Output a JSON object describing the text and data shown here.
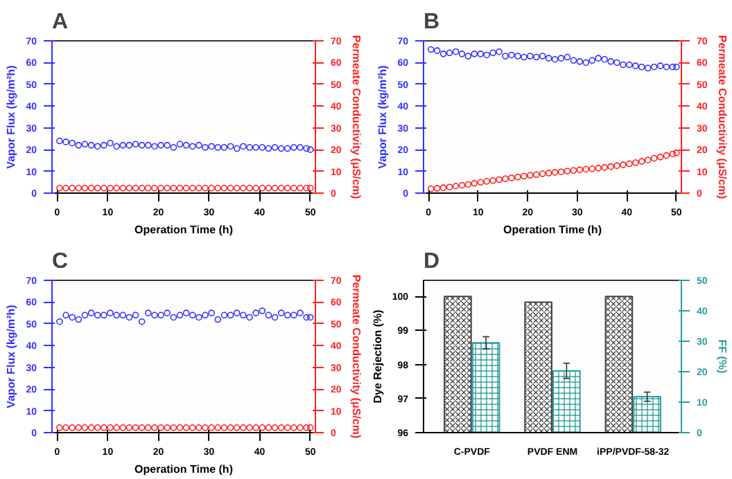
{
  "chart_data": [
    {
      "type": "scatter",
      "title": "A",
      "xlabel": "Operation Time (h)",
      "ylabel": "Vapor Flux (kg/m²h)",
      "y2label": "Permeate Conductivity (μS/cm)",
      "marker": "circle",
      "grid": false,
      "xlim": [
        -1,
        51
      ],
      "xticks": [
        0,
        10,
        20,
        30,
        40,
        50
      ],
      "ylim": [
        0,
        70
      ],
      "yticks": [
        0,
        10,
        20,
        30,
        40,
        50,
        60,
        70
      ],
      "y2lim": [
        0,
        70
      ],
      "y2ticks": [
        0,
        10,
        20,
        30,
        40,
        50,
        60,
        70
      ],
      "x": [
        0.5,
        1.75,
        3,
        4.25,
        5.5,
        6.75,
        8,
        9.25,
        10.5,
        11.75,
        13,
        14.25,
        15.5,
        16.75,
        18,
        19.25,
        20.5,
        21.75,
        23,
        24.25,
        25.5,
        26.75,
        28,
        29.25,
        30.5,
        31.75,
        33,
        34.25,
        35.5,
        36.75,
        38,
        39.25,
        40.5,
        41.75,
        43,
        44.25,
        45.5,
        46.75,
        48,
        49.25,
        50
      ],
      "series": [
        {
          "color": "#3030ff",
          "values": [
            24,
            23.5,
            23,
            22,
            22.5,
            22,
            21.5,
            22,
            23,
            21.5,
            22,
            22,
            22.5,
            22,
            22,
            21.5,
            22,
            22,
            21,
            22.5,
            22,
            21.5,
            22,
            21,
            21.5,
            21,
            21,
            21.5,
            20.5,
            21.5,
            21,
            21,
            21,
            20.5,
            21,
            20.5,
            20.5,
            21,
            21,
            20.5,
            20
          ]
        },
        {
          "color": "#ff2020",
          "axis": "y2",
          "values": [
            2.3,
            2.3,
            2.3,
            2.3,
            2.3,
            2.3,
            2.3,
            2.3,
            2.3,
            2.3,
            2.3,
            2.3,
            2.3,
            2.3,
            2.3,
            2.3,
            2.3,
            2.3,
            2.3,
            2.3,
            2.3,
            2.3,
            2.3,
            2.3,
            2.3,
            2.3,
            2.3,
            2.3,
            2.3,
            2.3,
            2.3,
            2.3,
            2.3,
            2.3,
            2.3,
            2.3,
            2.3,
            2.3,
            2.3,
            2.3,
            2.3
          ]
        }
      ]
    },
    {
      "type": "scatter",
      "title": "B",
      "xlabel": "Operation Time (h)",
      "ylabel": "Vapor Flux (kg/m²h)",
      "y2label": "Permeate Conductivity (μS/cm)",
      "marker": "circle",
      "grid": false,
      "xlim": [
        -1,
        51
      ],
      "xticks": [
        0,
        10,
        20,
        30,
        40,
        50
      ],
      "ylim": [
        0,
        70
      ],
      "yticks": [
        0,
        10,
        20,
        30,
        40,
        50,
        60,
        70
      ],
      "y2lim": [
        0,
        70
      ],
      "y2ticks": [
        0,
        10,
        20,
        30,
        40,
        50,
        60,
        70
      ],
      "x": [
        0.5,
        1.75,
        3,
        4.25,
        5.5,
        6.75,
        8,
        9.25,
        10.5,
        11.75,
        13,
        14.25,
        15.5,
        16.75,
        18,
        19.25,
        20.5,
        21.75,
        23,
        24.25,
        25.5,
        26.75,
        28,
        29.25,
        30.5,
        31.75,
        33,
        34.25,
        35.5,
        36.75,
        38,
        39.25,
        40.5,
        41.75,
        43,
        44.25,
        45.5,
        46.75,
        48,
        49.25,
        50
      ],
      "series": [
        {
          "color": "#3030ff",
          "values": [
            66,
            65.5,
            64,
            64.5,
            65,
            64,
            63,
            64,
            64,
            63.5,
            64.5,
            65,
            63,
            63.5,
            63,
            62.5,
            63,
            62.5,
            63,
            62,
            61.5,
            62,
            62.5,
            61,
            60.5,
            60,
            61,
            62,
            61.5,
            60.5,
            60,
            59,
            59,
            58.5,
            58,
            57.5,
            58,
            58.5,
            58,
            58,
            58
          ]
        },
        {
          "color": "#ff2020",
          "axis": "y2",
          "values": [
            2,
            2.2,
            2.5,
            2.8,
            3.2,
            3.6,
            4,
            4.5,
            5,
            5.4,
            5.8,
            6.2,
            6.6,
            7,
            7.4,
            7.8,
            8.2,
            8.5,
            8.9,
            9.2,
            9.5,
            9.8,
            10.1,
            10.4,
            10.7,
            11,
            11.2,
            11.5,
            11.8,
            12.2,
            12.6,
            13,
            13.5,
            14,
            14.6,
            15.2,
            16,
            16.6,
            17.3,
            18,
            18.5
          ]
        }
      ]
    },
    {
      "type": "scatter",
      "title": "C",
      "xlabel": "Operation Time (h)",
      "ylabel": "Vapor Flux (kg/m²h)",
      "y2label": "Permeate Conductivity (μS/cm)",
      "marker": "circle",
      "grid": false,
      "xlim": [
        -1,
        51
      ],
      "xticks": [
        0,
        10,
        20,
        30,
        40,
        50
      ],
      "ylim": [
        0,
        70
      ],
      "yticks": [
        0,
        10,
        20,
        30,
        40,
        50,
        60,
        70
      ],
      "y2lim": [
        0,
        70
      ],
      "y2ticks": [
        0,
        10,
        20,
        30,
        40,
        50,
        60,
        70
      ],
      "x": [
        0.5,
        1.75,
        3,
        4.25,
        5.5,
        6.75,
        8,
        9.25,
        10.5,
        11.75,
        13,
        14.25,
        15.5,
        16.75,
        18,
        19.25,
        20.5,
        21.75,
        23,
        24.25,
        25.5,
        26.75,
        28,
        29.25,
        30.5,
        31.75,
        33,
        34.25,
        35.5,
        36.75,
        38,
        39.25,
        40.5,
        41.75,
        43,
        44.25,
        45.5,
        46.75,
        48,
        49.25,
        50
      ],
      "series": [
        {
          "color": "#3030ff",
          "values": [
            51,
            54,
            53,
            52,
            54,
            55,
            54,
            54,
            55,
            54,
            54,
            53,
            54,
            51,
            55,
            54,
            54,
            55,
            53,
            54,
            55,
            54,
            53,
            54,
            55,
            52,
            54,
            54,
            55,
            54,
            53,
            55,
            56,
            54,
            53,
            55,
            54,
            54,
            55,
            53,
            53
          ]
        },
        {
          "color": "#ff2020",
          "axis": "y2",
          "values": [
            2.3,
            2.3,
            2.3,
            2.3,
            2.3,
            2.3,
            2.3,
            2.3,
            2.3,
            2.3,
            2.3,
            2.3,
            2.3,
            2.3,
            2.3,
            2.3,
            2.3,
            2.3,
            2.3,
            2.3,
            2.3,
            2.3,
            2.3,
            2.3,
            2.3,
            2.3,
            2.3,
            2.3,
            2.3,
            2.3,
            2.3,
            2.3,
            2.3,
            2.3,
            2.3,
            2.3,
            2.3,
            2.3,
            2.3,
            2.3,
            2.3
          ]
        }
      ]
    },
    {
      "type": "bar",
      "title": "D",
      "ylabel": "Dye Rejection (%)",
      "y2label": "FF (%)",
      "grid": false,
      "categories": [
        "C-PVDF",
        "PVDF ENM",
        "iPP/PVDF-58-32"
      ],
      "ylim": [
        96,
        100.47
      ],
      "yticks": [
        96,
        97,
        98,
        99,
        100
      ],
      "y2lim": [
        0,
        50
      ],
      "y2ticks": [
        0,
        10,
        20,
        30,
        40,
        50
      ],
      "series": [
        {
          "color": "#444444",
          "values": [
            100,
            99.83,
            100
          ]
        },
        {
          "color": "#2a9d9d",
          "axis": "y2",
          "values": [
            29.5,
            20.3,
            11.8
          ],
          "errors": [
            2,
            2.5,
            1.5
          ]
        }
      ]
    }
  ]
}
